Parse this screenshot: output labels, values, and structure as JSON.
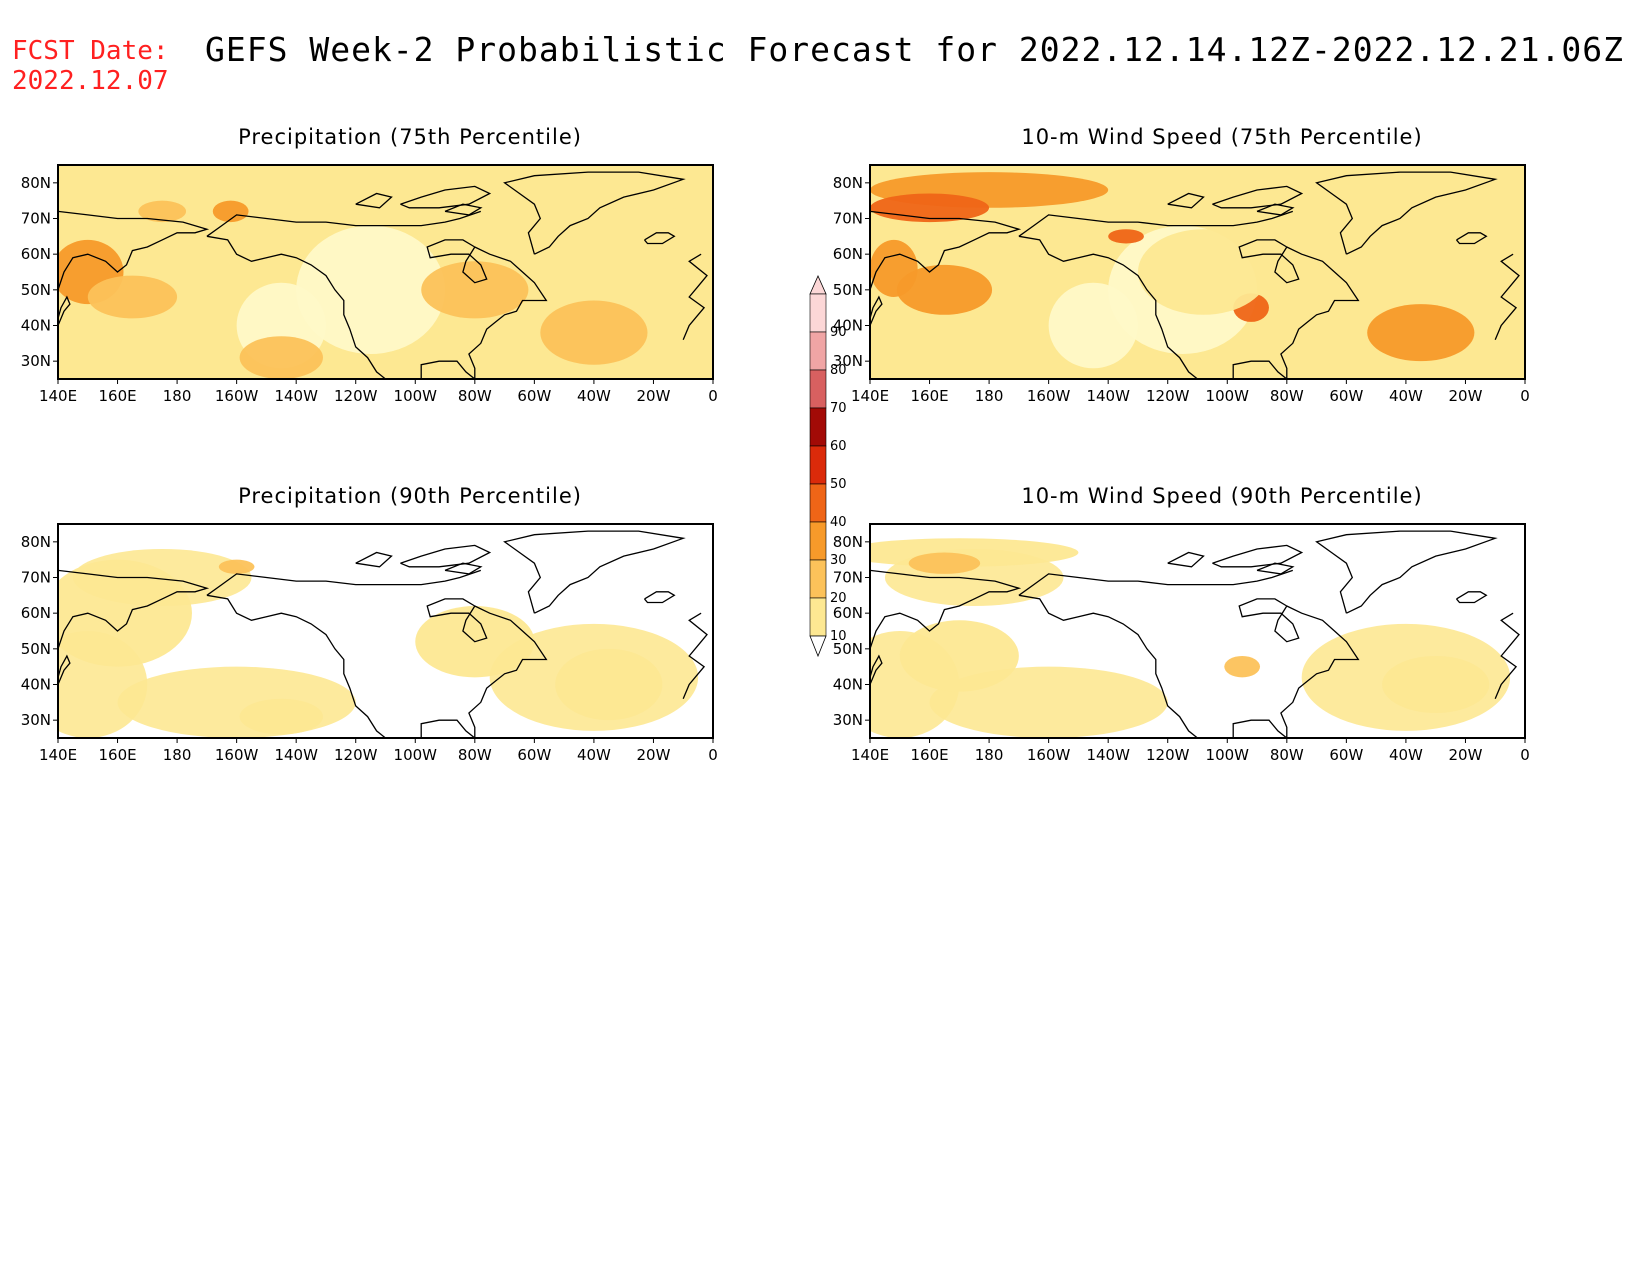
{
  "header": {
    "fcst_label": "FCST Date:",
    "fcst_date": "2022.12.07",
    "title": "GEFS Week-2 Probabilistic Forecast for 2022.12.14.12Z-2022.12.21.06Z"
  },
  "axes": {
    "lon_labels": [
      "140E",
      "160E",
      "180",
      "160W",
      "140W",
      "120W",
      "100W",
      "80W",
      "60W",
      "40W",
      "20W",
      "0"
    ],
    "lat_labels": [
      "80N",
      "70N",
      "60N",
      "50N",
      "40N",
      "30N"
    ]
  },
  "colorbar": {
    "levels": [
      "10",
      "20",
      "30",
      "40",
      "50",
      "60",
      "70",
      "80",
      "90"
    ],
    "colors": [
      "#fff9c8",
      "#fde892",
      "#fcc25a",
      "#f79a2a",
      "#ef6517",
      "#db2a0a",
      "#a20a06",
      "#d86060",
      "#f0a5a5",
      "#fcd7d7"
    ]
  },
  "panels": [
    {
      "id": "precip75",
      "title": "Precipitation (75th Percentile)",
      "field_levels": "wet-high",
      "blobs": [
        {
          "lon": 150,
          "lat": 55,
          "rx": 12,
          "ry": 9,
          "level": 3
        },
        {
          "lon": 165,
          "lat": 48,
          "rx": 15,
          "ry": 6,
          "level": 2
        },
        {
          "lon": 175,
          "lat": 72,
          "rx": 8,
          "ry": 3,
          "level": 2
        },
        {
          "lon": 198,
          "lat": 72,
          "rx": 6,
          "ry": 3,
          "level": 3
        },
        {
          "lon": 215,
          "lat": 31,
          "rx": 14,
          "ry": 6,
          "level": 2
        },
        {
          "lon": 280,
          "lat": 50,
          "rx": 18,
          "ry": 8,
          "level": 2
        },
        {
          "lon": 320,
          "lat": 38,
          "rx": 18,
          "ry": 9,
          "level": 2
        },
        {
          "lon": 350,
          "lat": 70,
          "rx": 8,
          "ry": 3,
          "level": 1
        }
      ]
    },
    {
      "id": "wind75",
      "title": "10-m Wind Speed (75th Percentile)",
      "field_levels": "windy-high",
      "blobs": [
        {
          "lon": 180,
          "lat": 78,
          "rx": 40,
          "ry": 5,
          "level": 3
        },
        {
          "lon": 160,
          "lat": 73,
          "rx": 20,
          "ry": 4,
          "level": 4
        },
        {
          "lon": 165,
          "lat": 50,
          "rx": 16,
          "ry": 7,
          "level": 3
        },
        {
          "lon": 148,
          "lat": 56,
          "rx": 8,
          "ry": 8,
          "level": 3
        },
        {
          "lon": 226,
          "lat": 65,
          "rx": 6,
          "ry": 2,
          "level": 4
        },
        {
          "lon": 268,
          "lat": 45,
          "rx": 6,
          "ry": 4,
          "level": 4
        },
        {
          "lon": 325,
          "lat": 38,
          "rx": 18,
          "ry": 8,
          "level": 3
        },
        {
          "lon": 252,
          "lat": 55,
          "rx": 22,
          "ry": 12,
          "level": 1
        }
      ]
    },
    {
      "id": "precip90",
      "title": "Precipitation (90th Percentile)",
      "field_levels": "wet-low",
      "blobs": [
        {
          "lon": 200,
          "lat": 73,
          "rx": 6,
          "ry": 2,
          "level": 2
        },
        {
          "lon": 215,
          "lat": 31,
          "rx": 14,
          "ry": 5,
          "level": 1
        },
        {
          "lon": 160,
          "lat": 60,
          "rx": 25,
          "ry": 15,
          "level": 1
        },
        {
          "lon": 280,
          "lat": 52,
          "rx": 20,
          "ry": 10,
          "level": 1
        },
        {
          "lon": 325,
          "lat": 40,
          "rx": 18,
          "ry": 10,
          "level": 1
        }
      ]
    },
    {
      "id": "wind90",
      "title": "10-m Wind Speed (90th Percentile)",
      "field_levels": "windy-low",
      "blobs": [
        {
          "lon": 170,
          "lat": 77,
          "rx": 40,
          "ry": 4,
          "level": 1
        },
        {
          "lon": 165,
          "lat": 74,
          "rx": 12,
          "ry": 3,
          "level": 2
        },
        {
          "lon": 170,
          "lat": 48,
          "rx": 20,
          "ry": 10,
          "level": 1
        },
        {
          "lon": 265,
          "lat": 45,
          "rx": 6,
          "ry": 3,
          "level": 2
        },
        {
          "lon": 330,
          "lat": 40,
          "rx": 18,
          "ry": 8,
          "level": 1
        }
      ]
    }
  ]
}
